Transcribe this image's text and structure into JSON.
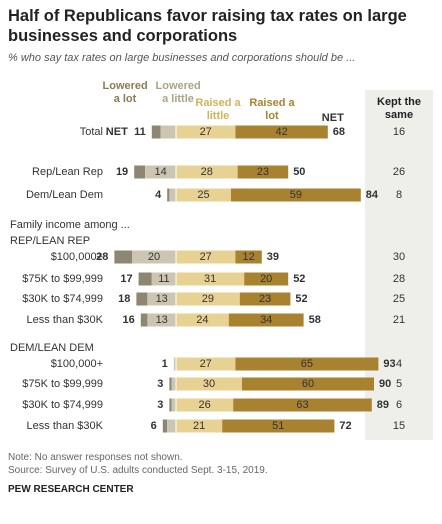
{
  "title": "Half of Republicans favor raising tax rates on large businesses and corporations",
  "subtitle": "% who say tax rates on large businesses and corporations should be ...",
  "chart_data": {
    "type": "diverging-bar",
    "categories": [
      "Total",
      "Rep/Lean Rep",
      "Dem/Lean Dem",
      "Family income among ...",
      "REP/LEAN REP",
      "$100,000+",
      "$75K to $99,999",
      "$30K to $74,999",
      "Less than $30K",
      "DEM/LEAN DEM",
      "$100,000+",
      "$75K to $99,999",
      "$30K to $74,999",
      "Less than $30K"
    ],
    "category_colors": [
      null,
      null,
      null,
      "#666666",
      "#c0392b",
      null,
      null,
      null,
      null,
      "#2e6da4",
      null,
      null,
      null,
      null
    ],
    "series": [
      {
        "name": "Lowered a lot",
        "color": "#8d8672",
        "label_color": "#8a7d55",
        "values": [
          4,
          5,
          1,
          null,
          null,
          8,
          6,
          5,
          3,
          null,
          0,
          1,
          1,
          2
        ]
      },
      {
        "name": "Lowered a little",
        "color": "#cbc5b2",
        "label_color": "#aba385",
        "values": [
          7,
          14,
          3,
          null,
          null,
          20,
          11,
          13,
          13,
          null,
          1,
          2,
          2,
          4
        ]
      },
      {
        "name": "Raised a little",
        "color": "#e8d293",
        "label_color": "#d2b25a",
        "values": [
          27,
          28,
          25,
          null,
          null,
          27,
          31,
          29,
          24,
          null,
          27,
          30,
          26,
          21
        ]
      },
      {
        "name": "Raised a lot",
        "color": "#a8822f",
        "label_color": "#a8822f",
        "values": [
          42,
          23,
          59,
          null,
          null,
          12,
          20,
          23,
          34,
          null,
          65,
          60,
          63,
          51
        ]
      }
    ],
    "net_label": "NET",
    "net_lowered": [
      11,
      19,
      4,
      null,
      null,
      28,
      17,
      18,
      16,
      null,
      1,
      3,
      3,
      6
    ],
    "net_raised": [
      68,
      50,
      84,
      null,
      null,
      39,
      52,
      52,
      58,
      null,
      93,
      90,
      89,
      72
    ],
    "kept_label": "Kept the same",
    "kept": [
      16,
      26,
      8,
      null,
      null,
      30,
      28,
      25,
      21,
      null,
      4,
      5,
      6,
      15
    ]
  },
  "notes": [
    "Note: No answer responses not shown.",
    "Source: Survey of U.S. adults conducted Sept. 3-15, 2019."
  ],
  "footer": "PEW RESEARCH CENTER"
}
